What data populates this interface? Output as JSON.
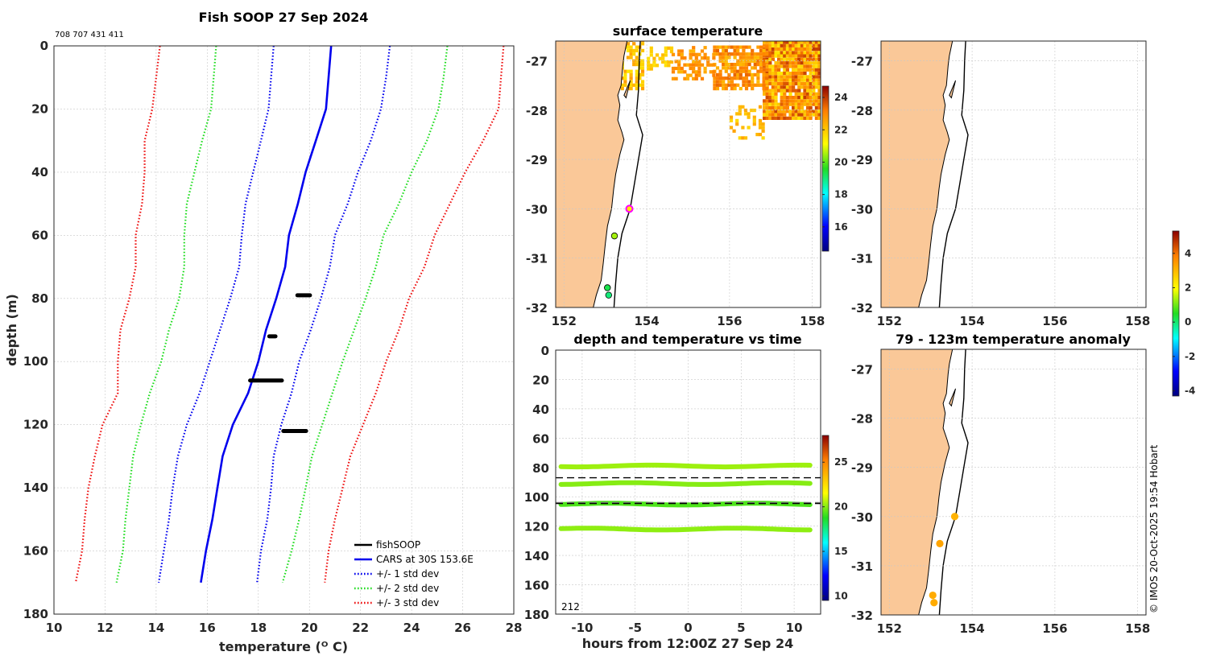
{
  "figure": {
    "main_title": "Fish SOOP 27 Sep 2024",
    "ids": "708 707 431 411",
    "copyright": "© IMOS 20-Oct-2025 19:54 Hobart"
  },
  "chart_data": [
    {
      "id": "profile",
      "type": "line",
      "title": "Fish SOOP 27 Sep 2024",
      "xlabel": "temperature (ᴼ C)",
      "ylabel": "depth (m)",
      "xlim": [
        10,
        28
      ],
      "ylim": [
        0,
        180
      ],
      "y_reversed": true,
      "xticks": [
        10,
        12,
        14,
        16,
        18,
        20,
        22,
        24,
        26,
        28
      ],
      "yticks": [
        0,
        20,
        40,
        60,
        80,
        100,
        120,
        140,
        160,
        180
      ],
      "depths": [
        0,
        10,
        20,
        30,
        40,
        50,
        60,
        70,
        80,
        90,
        100,
        110,
        120,
        130,
        140,
        150,
        160,
        170
      ],
      "series": [
        {
          "name": "CARS at 30S 153.6E",
          "color": "#0000ee",
          "style": "solid",
          "values": [
            20.85,
            20.75,
            20.65,
            20.25,
            19.85,
            19.55,
            19.2,
            19.05,
            18.7,
            18.3,
            18.0,
            17.6,
            17.0,
            16.6,
            16.4,
            16.2,
            15.95,
            15.75
          ]
        },
        {
          "name": "+/- 1 std dev (upper)",
          "legend": "+/- 1 std dev",
          "color": "#0000ee",
          "style": "dotted",
          "values": [
            23.15,
            23.0,
            22.8,
            22.4,
            21.9,
            21.5,
            21.0,
            20.8,
            20.45,
            20.05,
            19.6,
            19.3,
            18.9,
            18.6,
            18.5,
            18.35,
            18.1,
            17.95
          ]
        },
        {
          "name": "+/- 1 std dev (lower)",
          "color": "#0000ee",
          "style": "dotted",
          "values": [
            18.6,
            18.5,
            18.4,
            18.1,
            17.8,
            17.5,
            17.35,
            17.25,
            16.9,
            16.5,
            16.1,
            15.7,
            15.2,
            14.85,
            14.65,
            14.5,
            14.3,
            14.1
          ]
        },
        {
          "name": "+/- 2 std dev (upper)",
          "legend": "+/- 2 std dev",
          "color": "#22dd22",
          "style": "dotted",
          "values": [
            25.4,
            25.25,
            25.05,
            24.6,
            24.0,
            23.5,
            22.9,
            22.6,
            22.2,
            21.75,
            21.3,
            20.9,
            20.5,
            20.1,
            19.85,
            19.6,
            19.3,
            18.95
          ]
        },
        {
          "name": "+/- 2 std dev (lower)",
          "color": "#22dd22",
          "style": "dotted",
          "values": [
            16.35,
            16.25,
            16.15,
            15.8,
            15.5,
            15.2,
            15.1,
            15.1,
            14.9,
            14.5,
            14.2,
            13.75,
            13.4,
            13.1,
            12.95,
            12.8,
            12.7,
            12.45
          ]
        },
        {
          "name": "+/- 3 std dev (upper)",
          "legend": "+/- 3 std dev",
          "color": "#ee1111",
          "style": "dotted",
          "values": [
            27.6,
            27.5,
            27.4,
            26.8,
            26.1,
            25.5,
            24.9,
            24.5,
            23.9,
            23.5,
            23.0,
            22.6,
            22.1,
            21.6,
            21.3,
            21.0,
            20.75,
            20.6
          ]
        },
        {
          "name": "+/- 3 std dev (lower)",
          "color": "#ee1111",
          "style": "dotted",
          "values": [
            14.15,
            14.0,
            13.85,
            13.55,
            13.55,
            13.45,
            13.2,
            13.2,
            12.95,
            12.6,
            12.5,
            12.5,
            11.9,
            11.6,
            11.35,
            11.2,
            11.1,
            10.85
          ]
        }
      ],
      "fishsoop_clusters": [
        {
          "depth": 79,
          "t_min": 19.45,
          "t_max": 20.1
        },
        {
          "depth": 92,
          "t_min": 18.35,
          "t_max": 18.75
        },
        {
          "depth": 106,
          "t_min": 17.6,
          "t_max": 19.0
        },
        {
          "depth": 122,
          "t_min": 18.9,
          "t_max": 19.95
        }
      ],
      "legend": [
        {
          "label": "fishSOOP",
          "color": "#000000",
          "style": "solid"
        },
        {
          "label": "CARS at 30S 153.6E",
          "color": "#0000ee",
          "style": "solid"
        },
        {
          "label": "+/- 1 std dev",
          "color": "#0000ee",
          "style": "dotted"
        },
        {
          "label": "+/- 2 std dev",
          "color": "#22dd22",
          "style": "dotted"
        },
        {
          "label": "+/- 3 std dev",
          "color": "#ee1111",
          "style": "dotted"
        }
      ],
      "legend_position": "bottom-right"
    },
    {
      "id": "sst_map",
      "type": "heatmap",
      "title": "surface temperature",
      "xlim": [
        151.8,
        158.2
      ],
      "ylim": [
        -32,
        -26.6
      ],
      "xticks": [
        152,
        154,
        156,
        158
      ],
      "yticks": [
        -27,
        -28,
        -29,
        -30,
        -31,
        -32
      ],
      "colorbar": {
        "min": 14.5,
        "max": 24.7,
        "ticks": [
          16,
          18,
          20,
          22,
          24
        ]
      },
      "stations": [
        {
          "lon": 153.58,
          "lat": -30.0,
          "value": 21.5,
          "highlight": true
        },
        {
          "lon": 153.22,
          "lat": -30.55,
          "value": 20.5
        },
        {
          "lon": 153.05,
          "lat": -31.6,
          "value": 19.3
        },
        {
          "lon": 153.08,
          "lat": -31.75,
          "value": 19.0
        }
      ]
    },
    {
      "id": "depth_time",
      "type": "scatter",
      "title": "depth and temperature vs time",
      "xlabel": "hours from 12:00Z 27 Sep 24",
      "xlim": [
        -12.5,
        12.5
      ],
      "ylim": [
        0,
        180
      ],
      "y_reversed": true,
      "xticks": [
        -10,
        -5,
        0,
        5,
        10
      ],
      "yticks": [
        0,
        20,
        40,
        60,
        80,
        100,
        120,
        140,
        160,
        180
      ],
      "colorbar": {
        "min": 9.5,
        "max": 28,
        "ticks": [
          10,
          15,
          20,
          25
        ]
      },
      "tracks": [
        {
          "depth": 79,
          "temp": 20.3
        },
        {
          "depth": 91,
          "temp": 20.0
        },
        {
          "depth": 105,
          "temp": 19.3
        },
        {
          "depth": 122,
          "temp": 20.1
        }
      ],
      "reference_lines": [
        {
          "depth": 87,
          "color": "#000000"
        },
        {
          "depth": 104,
          "color": "#777777"
        },
        {
          "depth": 104.6,
          "color": "#000000"
        }
      ],
      "count_label": "212"
    },
    {
      "id": "blank_map",
      "type": "heatmap",
      "title": "",
      "xlim": [
        151.8,
        158.2
      ],
      "ylim": [
        -32,
        -26.6
      ],
      "xticks": [
        152,
        154,
        156,
        158
      ],
      "yticks": [
        -27,
        -28,
        -29,
        -30,
        -31,
        -32
      ]
    },
    {
      "id": "anomaly_map",
      "type": "scatter",
      "title": "79 - 123m temperature anomaly",
      "xlim": [
        151.8,
        158.2
      ],
      "ylim": [
        -32,
        -26.6
      ],
      "xticks": [
        152,
        154,
        156,
        158
      ],
      "yticks": [
        -27,
        -28,
        -29,
        -30,
        -31,
        -32
      ],
      "colorbar": {
        "min": -4.3,
        "max": 5.3,
        "ticks": [
          -4,
          -2,
          0,
          2,
          4
        ]
      },
      "stations": [
        {
          "lon": 153.58,
          "lat": -30.0,
          "value": 3.1
        },
        {
          "lon": 153.22,
          "lat": -30.55,
          "value": 3.3
        },
        {
          "lon": 153.05,
          "lat": -31.6,
          "value": 3.2
        },
        {
          "lon": 153.08,
          "lat": -31.75,
          "value": 3.2
        }
      ]
    }
  ],
  "colors": {
    "land": "#fac898",
    "coast": "#000000",
    "frame": "#262626"
  }
}
